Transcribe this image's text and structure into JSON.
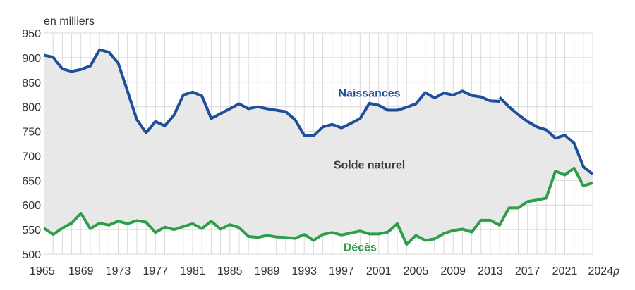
{
  "chart_data": {
    "type": "line",
    "unit_label": "en milliers",
    "ylim": [
      500,
      950
    ],
    "y_ticks": [
      500,
      550,
      600,
      650,
      700,
      750,
      800,
      850,
      900,
      950
    ],
    "x_range": [
      1965,
      2024
    ],
    "x_ticks": [
      {
        "value": 1965,
        "label": "1965",
        "provisional": false
      },
      {
        "value": 1969,
        "label": "1969",
        "provisional": false
      },
      {
        "value": 1973,
        "label": "1973",
        "provisional": false
      },
      {
        "value": 1977,
        "label": "1977",
        "provisional": false
      },
      {
        "value": 1981,
        "label": "1981",
        "provisional": false
      },
      {
        "value": 1985,
        "label": "1985",
        "provisional": false
      },
      {
        "value": 1989,
        "label": "1989",
        "provisional": false
      },
      {
        "value": 1993,
        "label": "1993",
        "provisional": false
      },
      {
        "value": 1997,
        "label": "1997",
        "provisional": false
      },
      {
        "value": 2001,
        "label": "2001",
        "provisional": false
      },
      {
        "value": 2005,
        "label": "2005",
        "provisional": false
      },
      {
        "value": 2009,
        "label": "2009",
        "provisional": false
      },
      {
        "value": 2013,
        "label": "2013",
        "provisional": false
      },
      {
        "value": 2017,
        "label": "2017",
        "provisional": false
      },
      {
        "value": 2021,
        "label": "2021",
        "provisional": false
      },
      {
        "value": 2024,
        "label": "2024",
        "provisional": true
      }
    ],
    "provisional_marker": "p",
    "grid": true,
    "area_label": "Solde naturel",
    "area_color": "#e8e8e8",
    "series": [
      {
        "name": "Naissances",
        "color": "#1f4e9a",
        "segments": [
          {
            "x": [
              1965,
              1966,
              1967,
              1968,
              1969,
              1970,
              1971,
              1972,
              1973,
              1974,
              1975,
              1976,
              1977,
              1978,
              1979,
              1980,
              1981,
              1982,
              1983,
              1984,
              1985,
              1986,
              1987,
              1988,
              1989,
              1990,
              1991,
              1992,
              1993,
              1994,
              1995,
              1996,
              1997,
              1998,
              1999,
              2000,
              2001,
              2002,
              2003,
              2004,
              2005,
              2006,
              2007,
              2008,
              2009,
              2010,
              2011,
              2012,
              2013,
              2014
            ],
            "y": [
              905,
              901,
              877,
              872,
              876,
              883,
              916,
              911,
              889,
              832,
              774,
              747,
              770,
              761,
              783,
              824,
              830,
              822,
              776,
              786,
              796,
              806,
              796,
              800,
              796,
              793,
              790,
              774,
              742,
              741,
              759,
              764,
              757,
              766,
              776,
              807,
              803,
              793,
              793,
              799,
              806,
              829,
              818,
              828,
              824,
              832,
              823,
              820,
              812,
              811
            ]
          },
          {
            "x": [
              2014,
              2015,
              2016,
              2017,
              2018,
              2019,
              2020,
              2021,
              2022,
              2023,
              2024
            ],
            "y": [
              819,
              800,
              784,
              770,
              759,
              753,
              736,
              742,
              726,
              678,
              663
            ]
          }
        ]
      },
      {
        "name": "Décès",
        "color": "#2e9e4a",
        "segments": [
          {
            "x": [
              1965,
              1966,
              1967,
              1968,
              1969,
              1970,
              1971,
              1972,
              1973,
              1974,
              1975,
              1976,
              1977,
              1978,
              1979,
              1980,
              1981,
              1982,
              1983,
              1984,
              1985,
              1986,
              1987,
              1988,
              1989,
              1990,
              1991,
              1992,
              1993,
              1994,
              1995,
              1996,
              1997,
              1998,
              1999,
              2000,
              2001,
              2002,
              2003,
              2004,
              2005,
              2006,
              2007,
              2008,
              2009,
              2010,
              2011,
              2012,
              2013,
              2014,
              2015,
              2016,
              2017,
              2018,
              2019,
              2020,
              2021,
              2022,
              2023,
              2024
            ],
            "y": [
              553,
              540,
              553,
              563,
              583,
              552,
              563,
              559,
              567,
              562,
              568,
              565,
              544,
              555,
              550,
              556,
              562,
              552,
              567,
              551,
              560,
              554,
              536,
              534,
              538,
              535,
              534,
              532,
              540,
              528,
              540,
              544,
              539,
              543,
              547,
              541,
              541,
              545,
              562,
              520,
              538,
              528,
              531,
              542,
              548,
              551,
              545,
              569,
              569,
              559,
              594,
              594,
              607,
              610,
              614,
              669,
              661,
              675,
              639,
              645
            ]
          }
        ]
      }
    ],
    "annotations": [
      {
        "text": "Naissances",
        "color": "#1f4e9a",
        "x": 2000,
        "y": 829
      },
      {
        "text": "Solde naturel",
        "color": "#3c3c3c",
        "x": 2000,
        "y": 683
      },
      {
        "text": "Décès",
        "color": "#2e9e4a",
        "x": 1999,
        "y": 515
      }
    ]
  }
}
